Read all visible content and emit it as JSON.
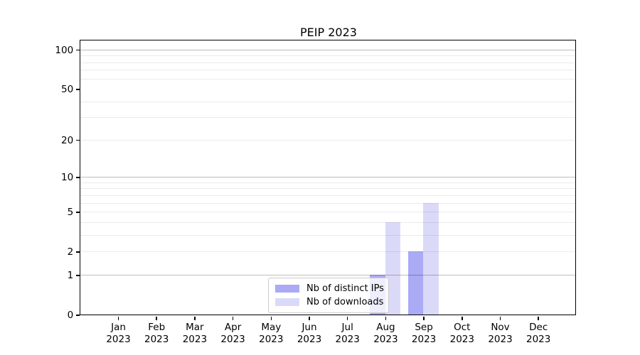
{
  "chart_data": {
    "type": "bar",
    "title": "PEIP 2023",
    "categories": [
      "Jan",
      "Feb",
      "Mar",
      "Apr",
      "May",
      "Jun",
      "Jul",
      "Aug",
      "Sep",
      "Oct",
      "Nov",
      "Dec"
    ],
    "category_sublabel": "2023",
    "series": [
      {
        "name": "Nb of distinct IPs",
        "color": "#aaaaf5",
        "values": [
          0,
          0,
          0,
          0,
          0,
          0,
          0,
          1,
          2,
          0,
          0,
          0
        ]
      },
      {
        "name": "Nb of downloads",
        "color": "#dadaf8",
        "values": [
          0,
          0,
          0,
          0,
          0,
          0,
          0,
          4,
          6,
          0,
          0,
          0
        ]
      }
    ],
    "y_scale": "log1p",
    "y_axis_max": 117,
    "y_ticks": [
      0,
      1,
      2,
      5,
      10,
      20,
      50,
      100
    ],
    "y_major_gridlines": [
      1,
      10,
      100
    ],
    "y_minor_gridlines": [
      2,
      3,
      4,
      5,
      6,
      7,
      8,
      9,
      20,
      30,
      40,
      60,
      70,
      80,
      90
    ],
    "grid": true,
    "legend_position": "bottom-center"
  }
}
